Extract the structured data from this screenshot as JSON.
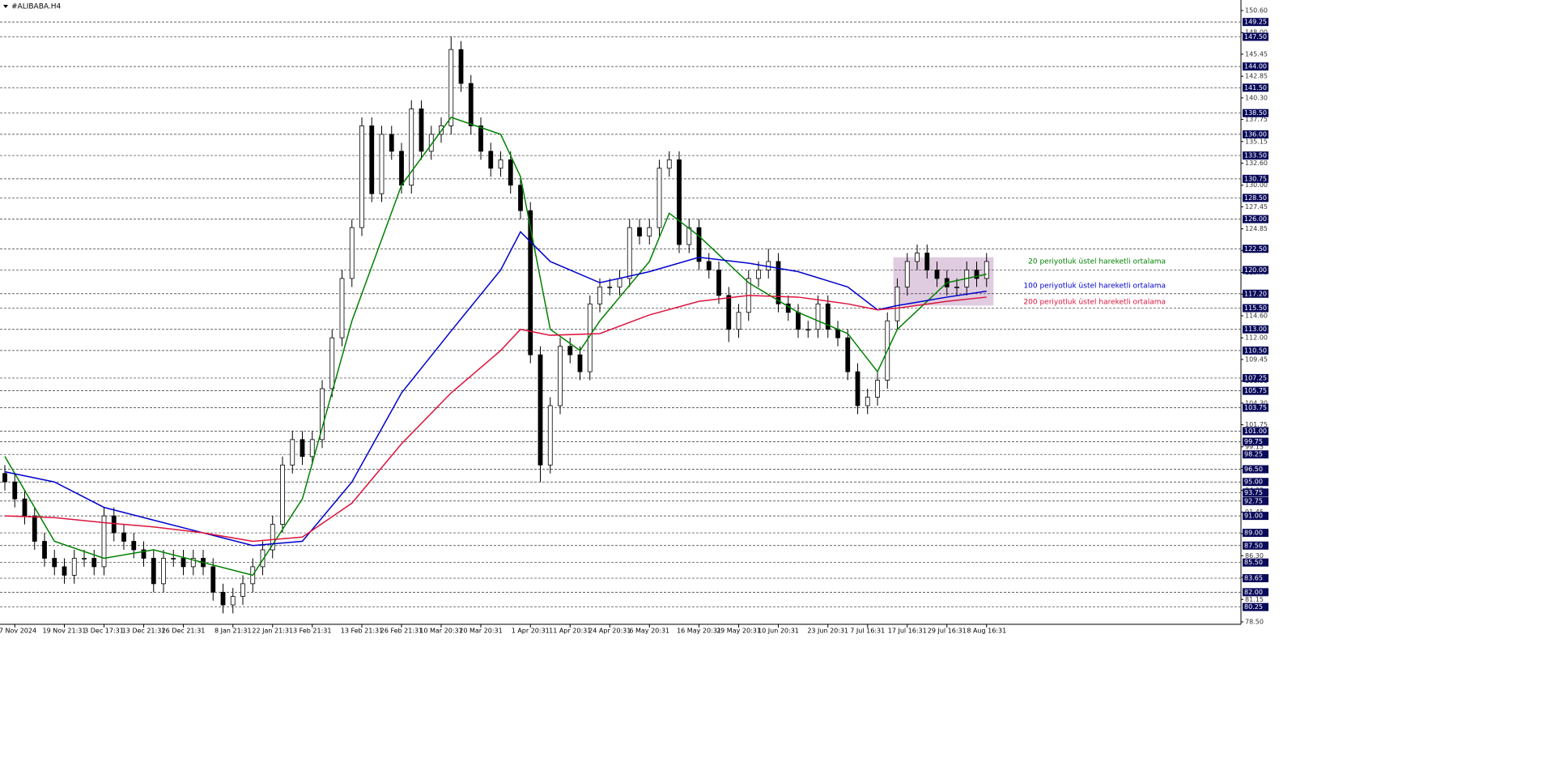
{
  "chart_data": {
    "type": "candlestick",
    "title": "#ALIBABA.H4",
    "categories": [
      null,
      "7 Nov 2024",
      null,
      null,
      null,
      null,
      "19 Nov 21:31",
      null,
      null,
      null,
      "3 Dec 17:31",
      null,
      null,
      null,
      "13 Dec 21:31",
      null,
      null,
      null,
      "26 Dec 21:31",
      null,
      null,
      null,
      null,
      "8 Jan 21:31",
      null,
      null,
      null,
      "22 Jan 21:31",
      null,
      null,
      null,
      "3 Feb 21:31",
      null,
      null,
      null,
      null,
      "13 Feb 21:31",
      null,
      null,
      null,
      "26 Feb 21:31",
      null,
      null,
      null,
      "10 Mar 20:31",
      null,
      null,
      null,
      "20 Mar 20:31",
      null,
      null,
      null,
      null,
      "1 Apr 20:31",
      null,
      null,
      null,
      "11 Apr 20:31",
      null,
      null,
      null,
      "24 Apr 20:31",
      null,
      null,
      null,
      "6 May 20:31",
      null,
      null,
      null,
      null,
      "16 May 20:31",
      null,
      null,
      null,
      "29 May 20:31",
      null,
      null,
      null,
      "10 Jun 20:31",
      null,
      null,
      null,
      null,
      "23 Jun 20:31",
      null,
      null,
      null,
      "7 Jul 16:31",
      null,
      null,
      null,
      "17 Jul 16:31",
      null,
      null,
      null,
      "29 Jul 16:31",
      null,
      null,
      null,
      "8 Aug 16:31"
    ],
    "open": [
      96,
      95,
      93,
      91,
      88,
      86,
      85,
      84,
      86,
      86,
      85,
      91,
      89,
      88,
      87,
      86,
      83,
      86,
      86,
      85,
      86,
      85,
      82,
      80.5,
      81.5,
      83,
      85,
      87,
      90,
      97,
      100,
      98,
      100,
      106,
      112,
      119,
      125,
      137,
      129,
      136,
      134,
      130,
      139,
      134,
      136,
      137,
      146,
      142,
      137,
      134,
      132,
      133,
      130,
      127,
      110,
      97,
      104,
      111,
      110,
      108,
      116,
      118,
      118,
      119,
      125,
      124,
      125,
      132,
      133,
      123,
      125,
      121,
      120,
      117,
      113,
      115,
      119,
      120,
      121,
      116,
      115,
      113,
      113,
      116,
      113,
      112,
      108,
      104,
      105,
      107,
      114,
      118,
      121,
      122,
      120,
      119,
      118,
      118,
      120,
      119
    ],
    "high": [
      97,
      96,
      94,
      92,
      89,
      87,
      86,
      87,
      87,
      87,
      92,
      92,
      90,
      89,
      88,
      87,
      87,
      87,
      87,
      87,
      87,
      86,
      83,
      82.5,
      84,
      86,
      88,
      91,
      98,
      101,
      101,
      101,
      107,
      113,
      120,
      126,
      138,
      138,
      137,
      137,
      135,
      140,
      140,
      137,
      138,
      147.5,
      147,
      143,
      138,
      135,
      134,
      134,
      131,
      128,
      111,
      105,
      112,
      112,
      111,
      117,
      119,
      119,
      120,
      126,
      126,
      126,
      133,
      134,
      134,
      126,
      126,
      122,
      121,
      118,
      116,
      120,
      121,
      122.5,
      122,
      117,
      116,
      114,
      117,
      117,
      114,
      113,
      109,
      106,
      108,
      115,
      119,
      122,
      123,
      123,
      121,
      120,
      119,
      121,
      121,
      122
    ],
    "low": [
      94,
      92,
      90,
      87,
      85,
      84,
      83,
      83,
      85,
      84,
      84,
      88,
      87,
      86,
      85,
      82,
      82,
      85,
      84,
      84,
      84,
      81,
      79.5,
      79.5,
      80.5,
      82,
      84,
      86,
      89,
      96,
      97,
      97,
      99,
      105,
      111,
      118,
      124,
      128,
      128,
      133,
      129,
      129,
      133,
      133,
      135,
      136,
      141,
      136,
      133,
      131,
      131,
      129,
      126,
      109,
      95,
      96,
      103,
      109,
      107,
      107,
      115,
      117,
      117,
      118,
      123,
      123,
      124,
      131,
      122,
      122,
      120,
      119,
      116,
      111.5,
      112,
      114,
      118,
      119,
      115,
      114,
      112,
      112,
      112,
      112,
      111,
      107,
      103,
      103,
      104,
      106,
      113,
      117,
      120,
      119,
      118,
      117,
      117,
      117,
      118,
      118
    ],
    "close": [
      95,
      93,
      91,
      88,
      86,
      85,
      84,
      86,
      86,
      85,
      91,
      89,
      88,
      87,
      86,
      83,
      86,
      86,
      85,
      86,
      85,
      82,
      80.5,
      81.5,
      83,
      85,
      87,
      90,
      97,
      100,
      98,
      100,
      106,
      112,
      119,
      125,
      137,
      129,
      136,
      134,
      130,
      139,
      134,
      136,
      137,
      146,
      142,
      137,
      134,
      132,
      133,
      130,
      127,
      110,
      97,
      104,
      111,
      110,
      108,
      116,
      118,
      118,
      119,
      125,
      124,
      125,
      132,
      133,
      123,
      125,
      121,
      120,
      117,
      113,
      115,
      119,
      120,
      121,
      116,
      115,
      113,
      113,
      116,
      113,
      112,
      108,
      104,
      105,
      107,
      114,
      118,
      121,
      122,
      120,
      119,
      118,
      118,
      120,
      119,
      121
    ],
    "series": [
      {
        "name": "20 periyotluk üstel hareketli ortalama",
        "color": "#008000",
        "x": [
          0,
          5,
          10,
          15,
          20,
          25,
          30,
          35,
          40,
          45,
          50,
          52,
          55,
          58,
          60,
          65,
          67,
          70,
          75,
          80,
          85,
          88,
          90,
          95,
          99
        ],
        "values": [
          98,
          88,
          86,
          87,
          85.5,
          84,
          93,
          114,
          130,
          138,
          136,
          131,
          113,
          110.5,
          114,
          121,
          126.7,
          124,
          118.5,
          115,
          112.5,
          108,
          113,
          118.5,
          119.5
        ]
      },
      {
        "name": "100 periyotluk üstel hareketli ortalama",
        "color": "#0000cc",
        "x": [
          0,
          5,
          10,
          15,
          20,
          25,
          30,
          35,
          40,
          45,
          50,
          52,
          55,
          60,
          65,
          70,
          75,
          80,
          85,
          88,
          90,
          95,
          99
        ],
        "values": [
          96.2,
          95,
          92,
          90.5,
          89,
          87.5,
          88,
          95,
          105.5,
          112.8,
          120,
          124.5,
          121,
          118.5,
          119.8,
          121.5,
          120.8,
          119.8,
          118,
          115.3,
          115.8,
          116.8,
          117.5
        ]
      },
      {
        "name": "200 periyotluk üstel hareketli ortalama",
        "color": "#dc143c",
        "x": [
          0,
          5,
          10,
          15,
          20,
          25,
          30,
          35,
          40,
          45,
          50,
          52,
          55,
          60,
          65,
          70,
          75,
          80,
          85,
          88,
          90,
          95,
          99
        ],
        "values": [
          91,
          90.8,
          90.2,
          89.7,
          89,
          88,
          88.5,
          92.5,
          99.5,
          105.5,
          110.5,
          113,
          112.3,
          112.5,
          114.7,
          116.3,
          117,
          116.8,
          116,
          115.3,
          115.5,
          116.3,
          116.8
        ]
      }
    ],
    "zone": {
      "x": [
        89.6,
        99.7
      ],
      "y": [
        115.8,
        121.5
      ],
      "color": "#d8bfd8"
    },
    "ylim": [
      78.5,
      150.6
    ],
    "yticks": [
      {
        "value": 150.6,
        "label": "150.60"
      },
      {
        "value": 148,
        "label": "148.00"
      },
      145.45,
      142.85,
      {
        "value": 140.3,
        "label": "140.30"
      },
      137.75,
      135.15,
      {
        "value": 132.6,
        "label": "132.60"
      },
      {
        "value": 130,
        "label": "130.00"
      },
      127.45,
      124.85,
      {
        "value": 122.3,
        "label": "122.30"
      },
      {
        "value": 119.7,
        "label": "119.70"
      },
      117.15,
      {
        "value": 114.6,
        "label": "114.60"
      },
      {
        "value": 112,
        "label": "112.00"
      },
      109.45,
      {
        "value": 106.9,
        "label": "106.90"
      },
      {
        "value": 104.3,
        "label": "104.30"
      },
      101.75,
      99.15,
      {
        "value": 96.6,
        "label": "96.60"
      },
      {
        "value": 94,
        "label": "94.00"
      },
      91.45,
      {
        "value": 88.9,
        "label": "88.90"
      },
      {
        "value": 86.3,
        "label": "86.30"
      },
      83.75,
      81.15,
      {
        "value": 78.5,
        "label": "78.50"
      }
    ],
    "levels": [
      149.25,
      {
        "value": 147.5,
        "label": "147.50"
      },
      {
        "value": 144,
        "label": "144.00"
      },
      {
        "value": 141.5,
        "label": "141.50"
      },
      {
        "value": 138.5,
        "label": "138.50"
      },
      {
        "value": 136,
        "label": "136.00"
      },
      {
        "value": 133.5,
        "label": "133.50"
      },
      130.75,
      {
        "value": 128.5,
        "label": "128.50"
      },
      {
        "value": 126,
        "label": "126.00"
      },
      {
        "value": 122.5,
        "label": "122.50"
      },
      {
        "value": 120,
        "label": "120.00"
      },
      {
        "value": 117.2,
        "label": "117.20"
      },
      {
        "value": 115.5,
        "label": "115.50"
      },
      {
        "value": 113,
        "label": "113.00"
      },
      {
        "value": 110.5,
        "label": "110.50"
      },
      107.25,
      105.75,
      103.75,
      {
        "value": 101,
        "label": "101.00"
      },
      99.75,
      98.25,
      {
        "value": 96.5,
        "label": "96.50"
      },
      {
        "value": 95,
        "label": "95.00"
      },
      93.75,
      92.75,
      {
        "value": 91,
        "label": "91.00"
      },
      {
        "value": 89,
        "label": "89.00"
      },
      {
        "value": 87.5,
        "label": "87.50"
      },
      {
        "value": 85.5,
        "label": "85.50"
      },
      83.65,
      {
        "value": 82,
        "label": "82.00"
      },
      80.25
    ]
  }
}
